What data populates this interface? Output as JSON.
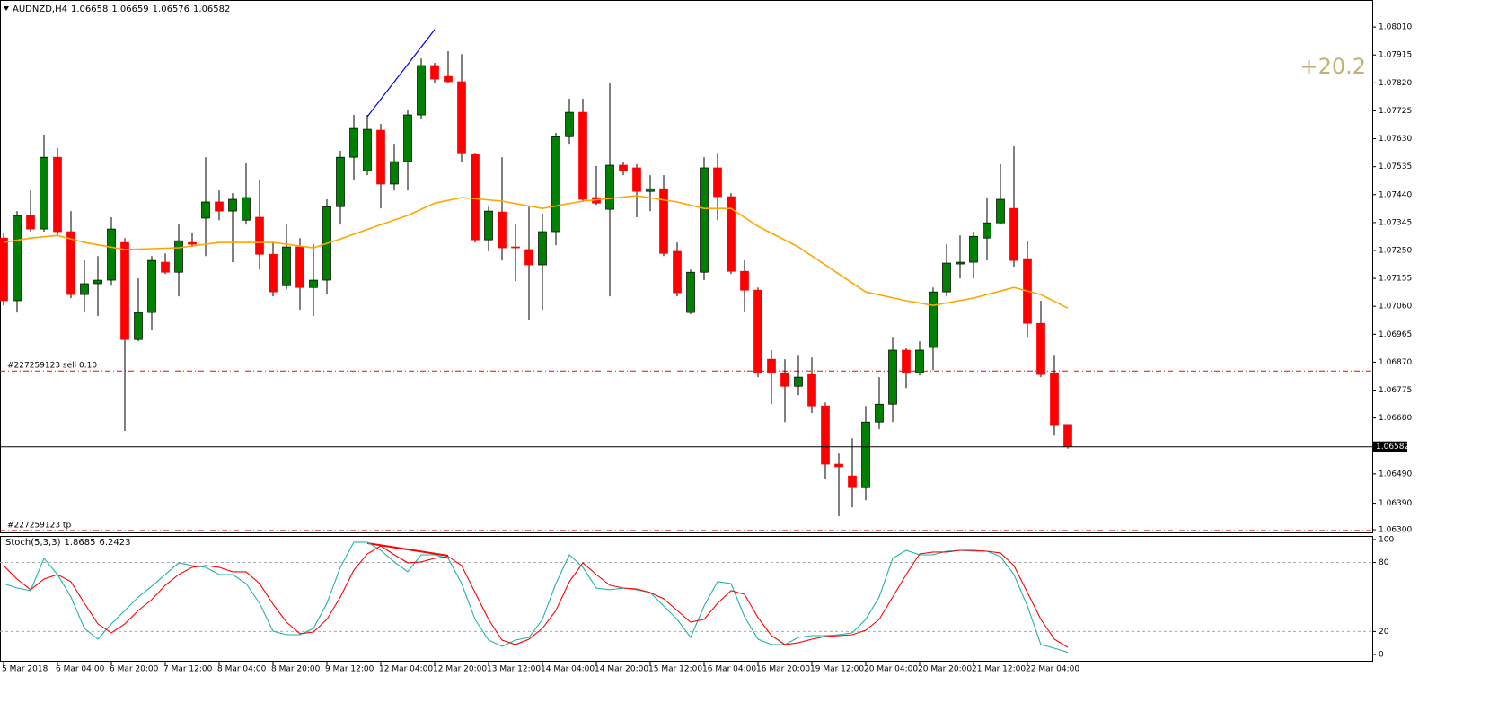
{
  "chart_data": [
    {
      "type": "candlestick",
      "symbol": "AUDNZD,H4",
      "categories": [
        "5 Mar 2018",
        null,
        null,
        null,
        "6 Mar 04:00",
        null,
        null,
        null,
        "6 Mar 20:00",
        null,
        null,
        null,
        "7 Mar 12:00",
        null,
        null,
        null,
        "8 Mar 04:00",
        null,
        null,
        null,
        "8 Mar 20:00",
        null,
        null,
        null,
        "9 Mar 12:00",
        null,
        null,
        null,
        "12 Mar 04:00",
        null,
        null,
        null,
        "12 Mar 20:00",
        null,
        null,
        null,
        "13 Mar 12:00",
        null,
        null,
        null,
        "14 Mar 04:00",
        null,
        null,
        null,
        "14 Mar 20:00",
        null,
        null,
        null,
        "15 Mar 12:00",
        null,
        null,
        null,
        "16 Mar 04:00",
        null,
        null,
        null,
        "16 Mar 20:00",
        null,
        null,
        null,
        "19 Mar 12:00",
        null,
        null,
        null,
        "20 Mar 04:00",
        null,
        null,
        null,
        "20 Mar 20:00",
        null,
        null,
        null,
        "21 Mar 12:00",
        null,
        null,
        null,
        "22 Mar 04:00",
        null,
        null,
        null
      ],
      "open": [
        1.07292,
        1.07079,
        1.07369,
        1.07323,
        1.07567,
        1.07314,
        1.071,
        1.07137,
        1.07149,
        1.07277,
        1.06947,
        1.07039,
        1.0721,
        1.07176,
        1.07277,
        1.0736,
        1.07415,
        1.07384,
        1.07353,
        1.07363,
        1.07237,
        1.0713,
        1.07262,
        1.07124,
        1.07149,
        1.07399,
        1.07567,
        1.07521,
        1.07659,
        1.07476,
        1.07552,
        1.07711,
        1.07879,
        1.07842,
        1.07824,
        1.07576,
        1.07286,
        1.07381,
        1.07262,
        1.07253,
        1.07201,
        1.07314,
        1.07637,
        1.0772,
        1.0743,
        1.0739,
        1.0754,
        1.07531,
        1.07451,
        1.0746,
        1.07247,
        1.07039,
        1.07176,
        1.07531,
        1.07433,
        1.07179,
        1.07115,
        1.0688,
        1.06834,
        1.06788,
        1.06828,
        1.06721,
        1.06523,
        1.06483,
        1.06443,
        1.06666,
        1.06727,
        1.06911,
        1.06834,
        1.0692,
        1.07109,
        1.07204,
        1.0721,
        1.07292,
        1.07344,
        1.07393,
        1.07222,
        1.07002,
        1.06834,
        1.06658
      ],
      "high": [
        1.07308,
        1.07384,
        1.07454,
        1.07644,
        1.07598,
        1.07384,
        1.07216,
        1.07231,
        1.07363,
        1.07292,
        1.07155,
        1.07231,
        1.0724,
        1.07338,
        1.07308,
        1.07567,
        1.07454,
        1.07445,
        1.07546,
        1.07491,
        1.07277,
        1.07338,
        1.07292,
        1.07271,
        1.07424,
        1.07589,
        1.07711,
        1.07711,
        1.0768,
        1.07613,
        1.07729,
        1.07903,
        1.07888,
        1.07928,
        1.07918,
        1.07582,
        1.07399,
        1.07567,
        1.07338,
        1.07399,
        1.07375,
        1.0765,
        1.07766,
        1.07766,
        1.07537,
        1.07818,
        1.07552,
        1.07543,
        1.07506,
        1.07506,
        1.07277,
        1.07185,
        1.07567,
        1.07582,
        1.07445,
        1.07216,
        1.07124,
        1.06911,
        1.0688,
        1.06895,
        1.06886,
        1.06733,
        1.06559,
        1.06611,
        1.06721,
        1.06819,
        1.06956,
        1.06917,
        1.06941,
        1.07124,
        1.07271,
        1.07301,
        1.07314,
        1.0743,
        1.07543,
        1.07604,
        1.07283,
        1.07079,
        1.06895,
        1.06659
      ],
      "low": [
        1.07063,
        1.07039,
        1.07314,
        1.07314,
        1.07301,
        1.07088,
        1.07039,
        1.07027,
        1.0713,
        1.06636,
        1.06941,
        1.06978,
        1.0717,
        1.07094,
        1.07262,
        1.07231,
        1.07353,
        1.0721,
        1.07338,
        1.07185,
        1.07094,
        1.07118,
        1.07048,
        1.07027,
        1.071,
        1.07338,
        1.07491,
        1.07506,
        1.07393,
        1.07454,
        1.07454,
        1.07699,
        1.07821,
        1.07821,
        1.07552,
        1.07277,
        1.07247,
        1.07216,
        1.07146,
        1.07014,
        1.07048,
        1.07268,
        1.07613,
        1.07415,
        1.07405,
        1.07094,
        1.07506,
        1.07363,
        1.07384,
        1.07231,
        1.07094,
        1.07033,
        1.07149,
        1.07353,
        1.0717,
        1.07039,
        1.06819,
        1.06727,
        1.06666,
        1.06758,
        1.06697,
        1.06474,
        1.06346,
        1.06376,
        1.064,
        1.06642,
        1.06666,
        1.06782,
        1.06825,
        1.06843,
        1.07094,
        1.07155,
        1.07155,
        1.07216,
        1.07338,
        1.07195,
        1.06956,
        1.06819,
        1.0662,
        1.06576
      ],
      "close": [
        1.07079,
        1.07369,
        1.07323,
        1.07567,
        1.07314,
        1.071,
        1.07137,
        1.07149,
        1.07323,
        1.06947,
        1.07039,
        1.07216,
        1.07176,
        1.07283,
        1.07271,
        1.07415,
        1.07384,
        1.07424,
        1.0743,
        1.07237,
        1.07109,
        1.07262,
        1.07124,
        1.07149,
        1.07399,
        1.07567,
        1.07665,
        1.07662,
        1.07476,
        1.07552,
        1.07711,
        1.07879,
        1.07833,
        1.07824,
        1.07582,
        1.07286,
        1.07384,
        1.07259,
        1.07259,
        1.07201,
        1.07314,
        1.07637,
        1.0772,
        1.07424,
        1.07411,
        1.0754,
        1.07521,
        1.07451,
        1.0746,
        1.0724,
        1.07106,
        1.07176,
        1.07531,
        1.07433,
        1.07179,
        1.07115,
        1.06834,
        1.06834,
        1.06788,
        1.06819,
        1.06721,
        1.06523,
        1.06514,
        1.06443,
        1.06666,
        1.06727,
        1.06911,
        1.06834,
        1.06911,
        1.07109,
        1.07207,
        1.0721,
        1.07298,
        1.07344,
        1.07424,
        1.07216,
        1.07002,
        1.06828,
        1.06657,
        1.06582
      ],
      "up_color": "#008000",
      "down_color": "#ff0000",
      "ylim": [
        1.06291,
        1.08102
      ],
      "yticks": [
        {
          "value": 1.0801,
          "label": "1.08010"
        },
        1.07915,
        {
          "value": 1.0782,
          "label": "1.07820"
        },
        1.07725,
        {
          "value": 1.0763,
          "label": "1.07630"
        },
        1.07535,
        {
          "value": 1.0744,
          "label": "1.07440"
        },
        1.07345,
        {
          "value": 1.0725,
          "label": "1.07250"
        },
        1.07155,
        {
          "value": 1.0706,
          "label": "1.07060"
        },
        1.06965,
        {
          "value": 1.0687,
          "label": "1.06870"
        },
        1.06775,
        {
          "value": 1.0668,
          "label": "1.06680"
        },
        {
          "value": 1.0649,
          "label": "1.06490"
        },
        {
          "value": 1.0639,
          "label": "1.06390"
        },
        {
          "value": 1.063,
          "label": "1.06300"
        }
      ],
      "moving_average": {
        "color": "#ffa500",
        "x": [
          0,
          2,
          4,
          6,
          9,
          13,
          16,
          20,
          23,
          25,
          28,
          30,
          32,
          34,
          37,
          40,
          43,
          47,
          50,
          52,
          54,
          56,
          59,
          62,
          64,
          67,
          69,
          72,
          75,
          77,
          79
        ],
        "values": [
          1.07277,
          1.07292,
          1.07301,
          1.07277,
          1.07253,
          1.07259,
          1.07277,
          1.07277,
          1.07259,
          1.07289,
          1.07338,
          1.07369,
          1.07411,
          1.0743,
          1.07418,
          1.07393,
          1.07418,
          1.07436,
          1.07415,
          1.07393,
          1.07393,
          1.07332,
          1.07262,
          1.0717,
          1.07109,
          1.07079,
          1.07063,
          1.07088,
          1.07124,
          1.071,
          1.07054
        ]
      },
      "order_lines": [
        {
          "label": "#227259123 sell 0.10",
          "value": 1.0684,
          "color": "#ff0000"
        },
        {
          "label": "#227259123 tp",
          "value": 1.06297,
          "color": "#a00000"
        }
      ],
      "profit": "+20.2"
    },
    {
      "type": "line",
      "title": "Stoch(5,3,3)",
      "series": [
        {
          "color": "#20b2aa",
          "values": [
            61.7,
            57.8,
            55.5,
            83.6,
            69.5,
            50,
            22.7,
            13.3,
            26.6,
            38.3,
            50,
            59.4,
            69.5,
            79.7,
            77.3,
            75.8,
            69.5,
            69.5,
            61.7,
            44.5,
            20.3,
            17.2,
            17.2,
            22.7,
            44.5,
            75.8,
            97.7,
            97.7,
            90.6,
            80.5,
            71.9,
            86.7,
            86.7,
            83.6,
            61.7,
            30.5,
            12.5,
            7,
            12.5,
            14.8,
            30.5,
            61.7,
            86.7,
            75.8,
            57.8,
            56.3,
            57.8,
            56.3,
            53.9,
            42.2,
            30.5,
            14.8,
            42.2,
            63.3,
            61.7,
            32.8,
            13.3,
            8.6,
            8.6,
            14.8,
            16.4,
            16.4,
            17.2,
            18.8,
            30.5,
            50,
            83.6,
            90.6,
            86.7,
            86.7,
            89.8,
            90.6,
            89.8,
            89.8,
            85.2,
            69.5,
            42.2,
            8.6,
            5.5,
            1.8685
          ]
        },
        {
          "color": "#ff0000",
          "values": [
            77.3,
            65.6,
            56.3,
            65.6,
            69.5,
            63.3,
            44.5,
            26.6,
            18.8,
            26.6,
            38.3,
            47.7,
            60.2,
            69.5,
            75.8,
            77.3,
            75.8,
            71.9,
            71.9,
            61.7,
            43.8,
            28.1,
            18,
            19.5,
            30.5,
            50,
            73.4,
            87.5,
            94.5,
            86.7,
            79.7,
            80.5,
            83.6,
            85.2,
            77.3,
            53.9,
            30.5,
            12.5,
            8.6,
            13.3,
            22.7,
            38.3,
            63.3,
            79.7,
            69.5,
            60.2,
            57.8,
            57,
            53.9,
            48.4,
            38.3,
            28.1,
            30.5,
            44.5,
            55.5,
            52.3,
            32,
            16.4,
            8.6,
            10.2,
            13.3,
            15.6,
            16.4,
            17.2,
            21.1,
            30.5,
            50,
            69.5,
            87.5,
            89.1,
            89.1,
            90.6,
            90.6,
            89.8,
            88.3,
            77.3,
            53.9,
            30.5,
            13.3,
            6.2423
          ]
        }
      ],
      "ylim": [
        -6.25,
        102.3
      ],
      "yticks": [
        0,
        20,
        80,
        100
      ]
    }
  ]
}
